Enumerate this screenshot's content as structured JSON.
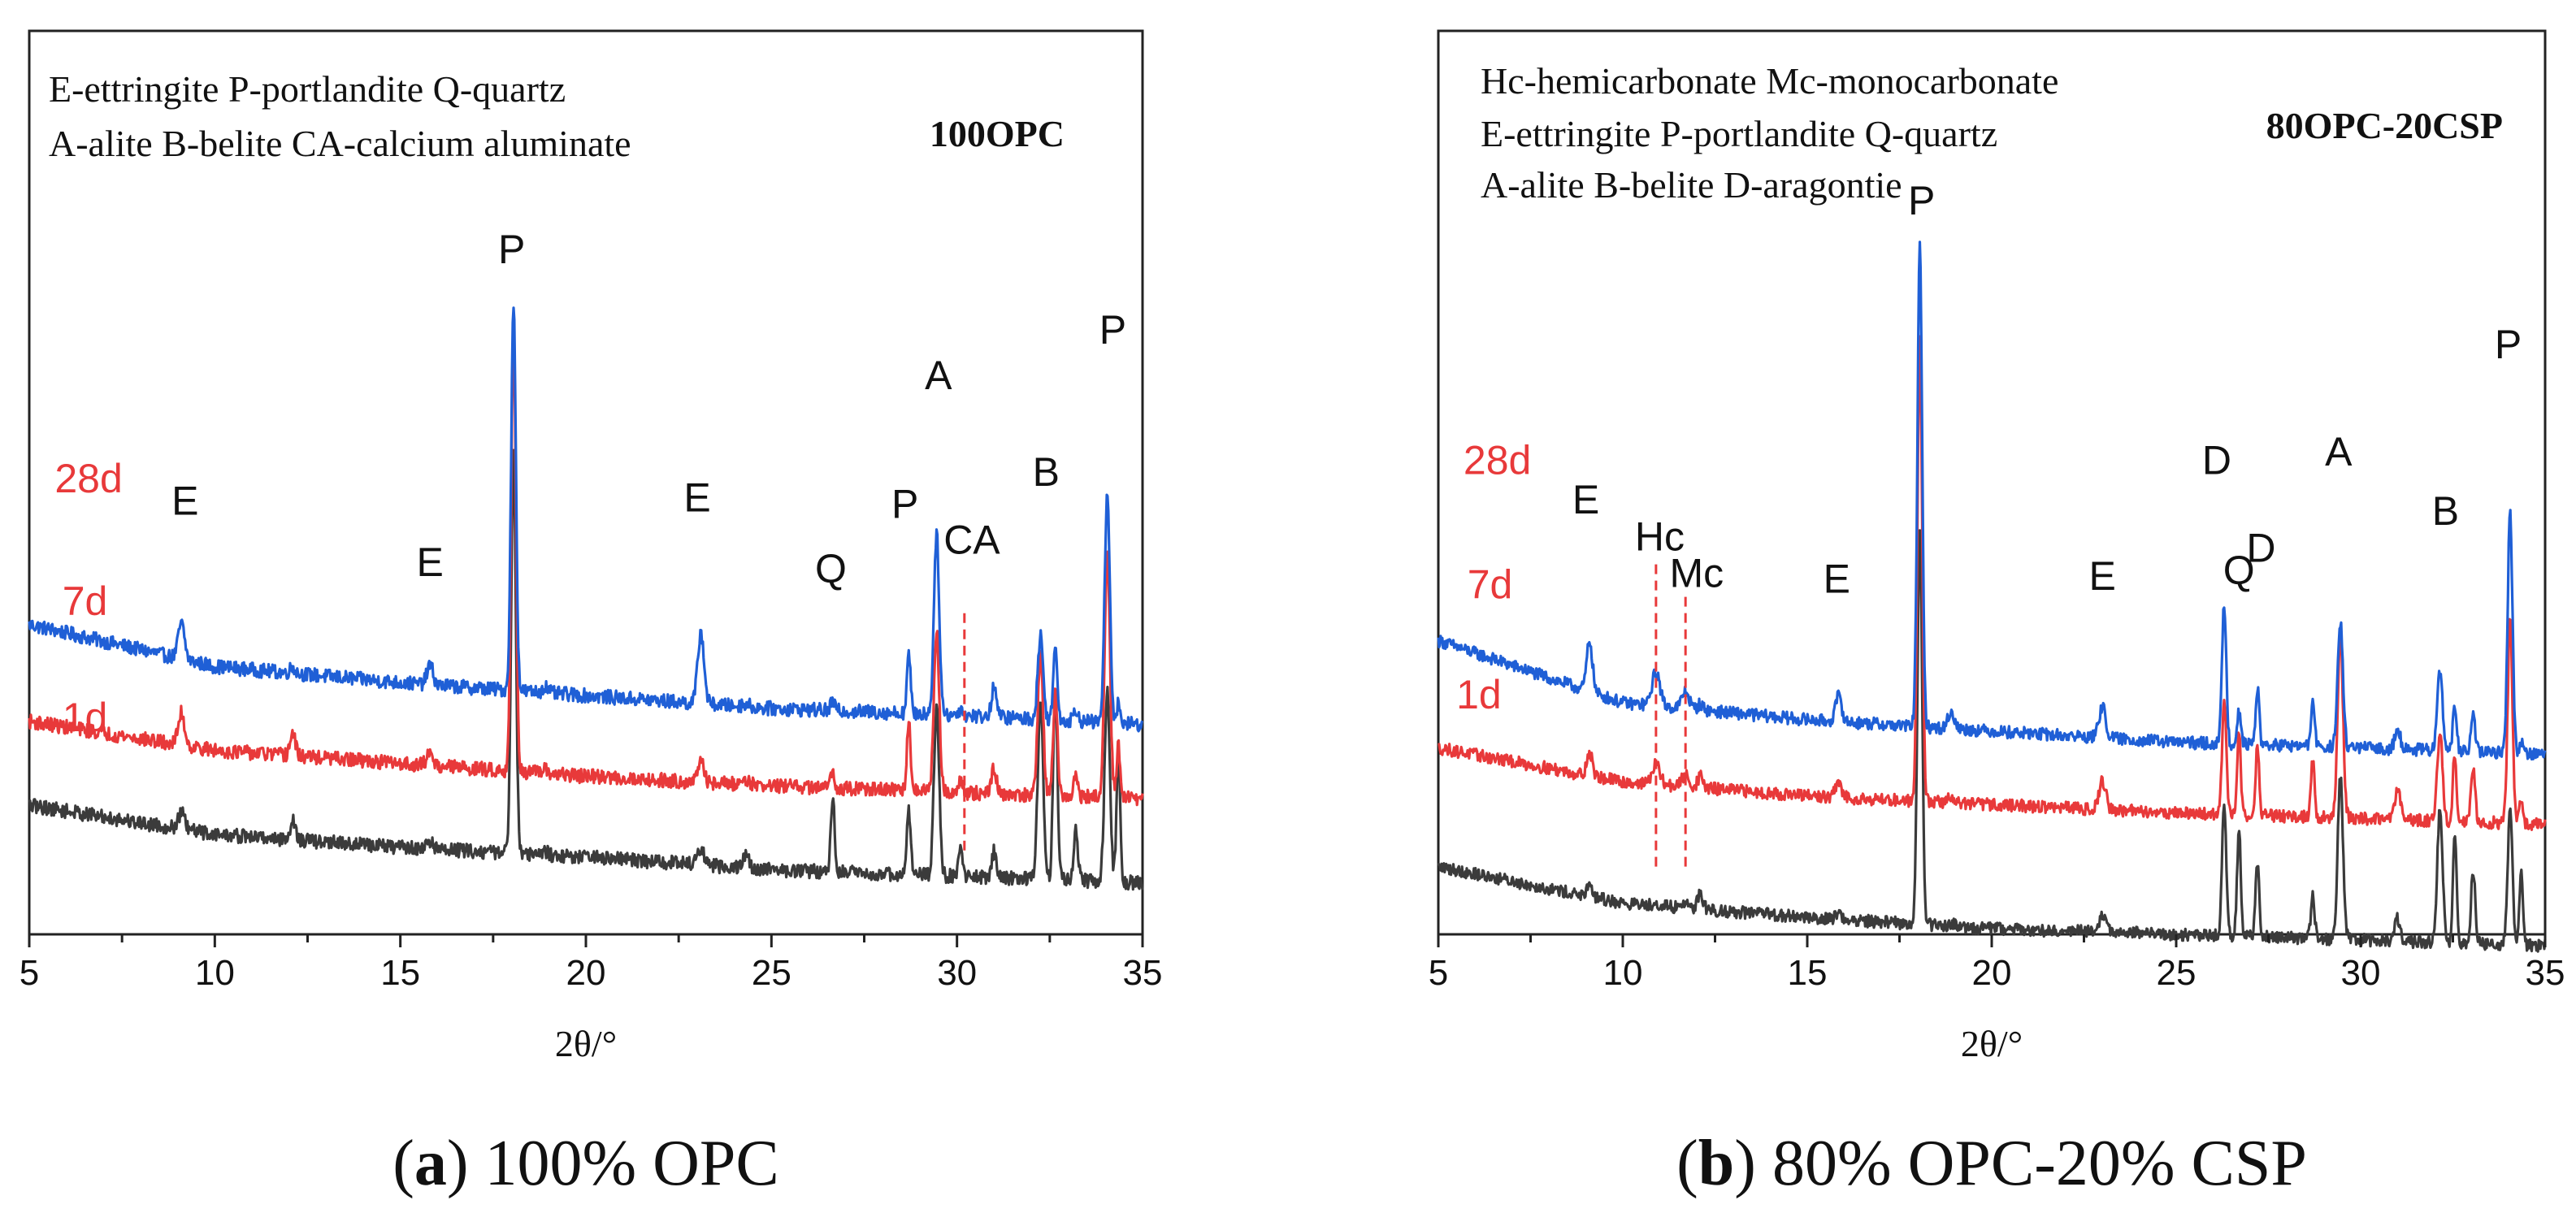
{
  "chart_data": [
    {
      "type": "line",
      "id": "a",
      "title": "100OPC",
      "xlabel": "2θ/°",
      "ylabel": "",
      "xlim": [
        5,
        35
      ],
      "xticks": [
        5,
        10,
        15,
        20,
        25,
        30,
        35
      ],
      "legend_lines": [
        "E-ettringite P-portlandite Q-quartz",
        "A-alite B-belite CA-calcium aluminate"
      ],
      "caption": {
        "letter": "a",
        "text": "100% OPC"
      },
      "series": [
        {
          "name": "28d",
          "color": "#1f5fd6",
          "offset": 2.2,
          "baseline": [
            5.6,
            4.95,
            4.7,
            4.5,
            4.3,
            4.2,
            4.05
          ]
        },
        {
          "name": "7d",
          "color": "#e8393a",
          "offset": 1.1,
          "baseline": [
            5.2,
            4.75,
            4.55,
            4.35,
            4.2,
            4.1,
            4.0
          ]
        },
        {
          "name": "1d",
          "color": "#3b3b3b",
          "offset": 0.0,
          "baseline": [
            5.0,
            4.55,
            4.35,
            4.2,
            4.0,
            3.9,
            3.8
          ]
        }
      ],
      "peaks": [
        {
          "x": 9.1,
          "h": [
            0.55,
            0.5,
            0.25
          ],
          "w": 0.12
        },
        {
          "x": 12.1,
          "h": [
            0.1,
            0.35,
            0.3
          ],
          "w": 0.1
        },
        {
          "x": 15.8,
          "h": [
            0.3,
            0.2,
            0.1
          ],
          "w": 0.12
        },
        {
          "x": 18.05,
          "h": [
            6.0,
            6.8,
            6.2
          ],
          "w": 0.09
        },
        {
          "x": 18.9,
          "h": [
            0.1,
            0.05,
            0.05
          ],
          "w": 0.1
        },
        {
          "x": 23.1,
          "h": [
            1.1,
            0.3,
            0.25
          ],
          "w": 0.12
        },
        {
          "x": 24.3,
          "h": [
            0.05,
            0.1,
            0.2
          ],
          "w": 0.12
        },
        {
          "x": 26.65,
          "h": [
            0.15,
            0.3,
            1.2
          ],
          "w": 0.07
        },
        {
          "x": 28.7,
          "h": [
            0.9,
            1.1,
            1.0
          ],
          "w": 0.07
        },
        {
          "x": 29.45,
          "h": [
            2.8,
            2.5,
            2.6
          ],
          "w": 0.1
        },
        {
          "x": 30.1,
          "h": [
            0.1,
            0.2,
            0.4
          ],
          "w": 0.08
        },
        {
          "x": 31.0,
          "h": [
            0.5,
            0.4,
            0.4
          ],
          "w": 0.09
        },
        {
          "x": 32.25,
          "h": [
            1.3,
            2.2,
            2.8
          ],
          "w": 0.1
        },
        {
          "x": 32.65,
          "h": [
            1.1,
            1.6,
            3.0
          ],
          "w": 0.08
        },
        {
          "x": 33.2,
          "h": [
            0.2,
            0.3,
            0.8
          ],
          "w": 0.08
        },
        {
          "x": 34.05,
          "h": [
            3.5,
            3.8,
            3.0
          ],
          "w": 0.1
        },
        {
          "x": 34.35,
          "h": [
            0.3,
            0.8,
            2.0
          ],
          "w": 0.07
        }
      ],
      "peak_labels": [
        {
          "text": "E",
          "x": 9.2,
          "y": 6.5
        },
        {
          "text": "E",
          "x": 15.8,
          "y": 5.55
        },
        {
          "text": "P",
          "x": 18.0,
          "y": 10.4
        },
        {
          "text": "E",
          "x": 23.0,
          "y": 6.55
        },
        {
          "text": "Q",
          "x": 26.6,
          "y": 5.45
        },
        {
          "text": "P",
          "x": 28.6,
          "y": 6.45
        },
        {
          "text": "A",
          "x": 29.5,
          "y": 8.45
        },
        {
          "text": "CA",
          "x": 30.4,
          "y": 5.9
        },
        {
          "text": "B",
          "x": 32.4,
          "y": 6.95
        },
        {
          "text": "P",
          "x": 34.2,
          "y": 9.15
        }
      ],
      "age_labels": [
        {
          "text": "28d",
          "x": 6.6,
          "y": 6.85
        },
        {
          "text": "7d",
          "x": 6.5,
          "y": 4.95
        },
        {
          "text": "1d",
          "x": 6.5,
          "y": 3.15
        }
      ],
      "ylim": [
        0,
        14
      ],
      "dashed_lines": [
        {
          "x": 30.2,
          "y0": 1.3,
          "y1": 5.0
        }
      ]
    },
    {
      "type": "line",
      "id": "b",
      "title": "80OPC-20CSP",
      "xlabel": "2θ/°",
      "ylabel": "",
      "xlim": [
        5,
        35
      ],
      "xticks": [
        5,
        10,
        15,
        20,
        25,
        30,
        35
      ],
      "legend_lines": [
        "Hc-hemicarbonate Mc-monocarbonate",
        "E-ettringite P-portlandite Q-quartz",
        "A-alite B-belite D-aragontie"
      ],
      "caption": {
        "letter": "b",
        "text": "80% OPC-20% CSP"
      },
      "series": [
        {
          "name": "28d",
          "color": "#1f5fd6",
          "offset": 2.2,
          "baseline": [
            6.0,
            4.9,
            4.6,
            4.4,
            4.2,
            4.1,
            4.0
          ]
        },
        {
          "name": "7d",
          "color": "#e8393a",
          "offset": 1.1,
          "baseline": [
            5.2,
            4.6,
            4.35,
            4.2,
            4.05,
            3.95,
            3.85
          ]
        },
        {
          "name": "1d",
          "color": "#3b3b3b",
          "offset": 0.0,
          "baseline": [
            4.2,
            3.55,
            3.3,
            3.1,
            3.0,
            2.9,
            2.8
          ]
        }
      ],
      "peaks": [
        {
          "x": 9.1,
          "h": [
            0.9,
            0.4,
            0.15
          ],
          "w": 0.11
        },
        {
          "x": 10.9,
          "h": [
            0.6,
            0.35,
            0.05
          ],
          "w": 0.15
        },
        {
          "x": 11.7,
          "h": [
            0.3,
            0.2,
            0.1
          ],
          "w": 0.14
        },
        {
          "x": 12.1,
          "h": [
            0.1,
            0.2,
            0.3
          ],
          "w": 0.1
        },
        {
          "x": 15.85,
          "h": [
            0.45,
            0.25,
            0.1
          ],
          "w": 0.12
        },
        {
          "x": 18.05,
          "h": [
            8.5,
            8.2,
            7.0
          ],
          "w": 0.09
        },
        {
          "x": 18.9,
          "h": [
            0.3,
            0.1,
            0.05
          ],
          "w": 0.12
        },
        {
          "x": 23.0,
          "h": [
            0.55,
            0.5,
            0.3
          ],
          "w": 0.13
        },
        {
          "x": 26.3,
          "h": [
            2.5,
            2.0,
            2.4
          ],
          "w": 0.08
        },
        {
          "x": 26.7,
          "h": [
            0.6,
            1.5,
            1.9
          ],
          "w": 0.07
        },
        {
          "x": 27.2,
          "h": [
            1.0,
            1.2,
            1.3
          ],
          "w": 0.07
        },
        {
          "x": 28.7,
          "h": [
            0.8,
            1.0,
            0.8
          ],
          "w": 0.07
        },
        {
          "x": 29.45,
          "h": [
            2.2,
            3.3,
            2.9
          ],
          "w": 0.1
        },
        {
          "x": 31.0,
          "h": [
            0.4,
            0.6,
            0.4
          ],
          "w": 0.1
        },
        {
          "x": 32.15,
          "h": [
            1.4,
            1.6,
            2.4
          ],
          "w": 0.1
        },
        {
          "x": 32.55,
          "h": [
            0.8,
            1.2,
            2.0
          ],
          "w": 0.07
        },
        {
          "x": 33.05,
          "h": [
            0.6,
            0.9,
            1.3
          ],
          "w": 0.08
        },
        {
          "x": 34.05,
          "h": [
            4.3,
            3.6,
            2.4
          ],
          "w": 0.09
        },
        {
          "x": 34.35,
          "h": [
            0.2,
            0.4,
            1.3
          ],
          "w": 0.07
        }
      ],
      "peak_labels": [
        {
          "text": "E",
          "x": 9.0,
          "y": 7.45
        },
        {
          "text": "Hc",
          "x": 11.0,
          "y": 6.8
        },
        {
          "text": "Mc",
          "x": 12.0,
          "y": 6.15
        },
        {
          "text": "E",
          "x": 15.8,
          "y": 6.05
        },
        {
          "text": "P",
          "x": 18.1,
          "y": 12.75
        },
        {
          "text": "E",
          "x": 23.0,
          "y": 6.1
        },
        {
          "text": "D",
          "x": 26.1,
          "y": 8.15
        },
        {
          "text": "Q",
          "x": 26.7,
          "y": 6.2
        },
        {
          "text": "D",
          "x": 27.3,
          "y": 6.6
        },
        {
          "text": "A",
          "x": 29.4,
          "y": 8.3
        },
        {
          "text": "B",
          "x": 32.3,
          "y": 7.25
        },
        {
          "text": "P",
          "x": 34.0,
          "y": 10.2
        }
      ],
      "age_labels": [
        {
          "text": "28d",
          "x": 6.6,
          "y": 8.15
        },
        {
          "text": "7d",
          "x": 6.4,
          "y": 5.95
        },
        {
          "text": "1d",
          "x": 6.1,
          "y": 4.0
        }
      ],
      "ylim": [
        0,
        16
      ],
      "dashed_lines": [
        {
          "x": 10.9,
          "y0": 1.2,
          "y1": 6.6
        },
        {
          "x": 11.7,
          "y0": 1.2,
          "y1": 6.0
        }
      ]
    }
  ]
}
